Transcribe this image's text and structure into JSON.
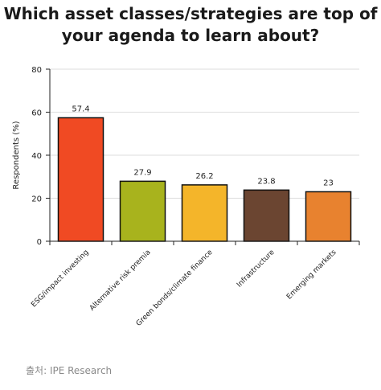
{
  "chart_data": {
    "type": "bar",
    "title": "Which asset classes/strategies are top of\nyour agenda to learn about?",
    "xlabel": "",
    "ylabel": "Respondents (%)",
    "categories": [
      "ESG/impact investing",
      "Alternative risk premia",
      "Green bonds/climate finance",
      "Infrastructure",
      "Emerging markets"
    ],
    "values": [
      57.4,
      27.9,
      26.2,
      23.8,
      23
    ],
    "value_labels": [
      "57.4",
      "27.9",
      "26.2",
      "23.8",
      "23"
    ],
    "colors": [
      "#f04a23",
      "#a8b31d",
      "#f4b52a",
      "#6b4531",
      "#e8822f"
    ],
    "ylim": [
      0,
      80
    ],
    "yticks": [
      0,
      20,
      40,
      60,
      80
    ],
    "grid": true,
    "legend": "none"
  },
  "source": "출처: IPE Research"
}
